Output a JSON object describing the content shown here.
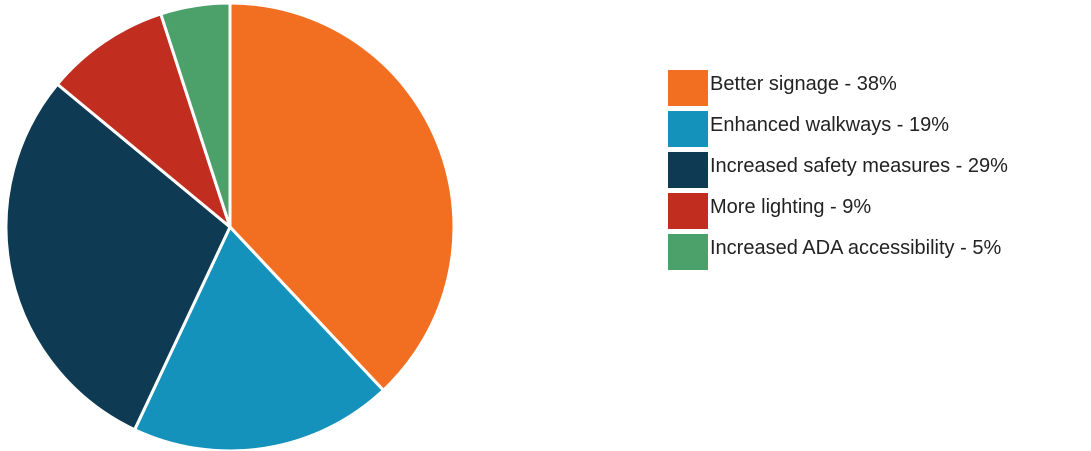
{
  "chart_data": {
    "type": "pie",
    "slices": [
      {
        "label": "Better signage",
        "value": 38,
        "display": "Better signage - 38%",
        "color": "#f26f22"
      },
      {
        "label": "Enhanced walkways",
        "value": 19,
        "display": "Enhanced walkways - 19%",
        "color": "#1592bb"
      },
      {
        "label": "Increased safety measures",
        "value": 29,
        "display": "Increased safety measures - 29%",
        "color": "#0e3b53"
      },
      {
        "label": "More lighting",
        "value": 9,
        "display": "More lighting - 9%",
        "color": "#c12e20"
      },
      {
        "label": "Increased ADA accessibility",
        "value": 5,
        "display": "Increased ADA accessibility - 5%",
        "color": "#4ca16b"
      }
    ],
    "legend_position": "right"
  }
}
